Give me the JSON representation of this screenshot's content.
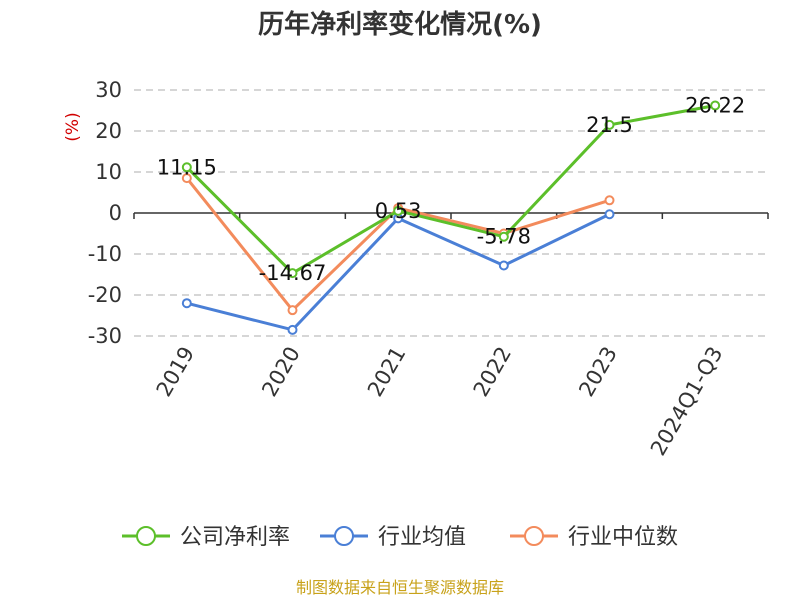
{
  "chart_data": {
    "type": "line",
    "title": "历年净利率变化情况(%)",
    "ylabel": "(%)",
    "categories": [
      "2019",
      "2020",
      "2021",
      "2022",
      "2023",
      "2024Q1-Q3"
    ],
    "ylim": [
      -30,
      30
    ],
    "yticks": [
      30,
      20,
      10,
      0,
      -10,
      -20,
      -30
    ],
    "grid": true,
    "legend_position": "bottom",
    "series": [
      {
        "name": "公司净利率",
        "color": "#5cbf2a",
        "values": [
          11.15,
          -14.67,
          0.53,
          -5.78,
          21.5,
          26.22
        ],
        "labels": [
          "11.15",
          "-14.67",
          "0.53",
          "-5.78",
          "21.5",
          "26.22"
        ]
      },
      {
        "name": "行业均值",
        "color": "#4a7fd6",
        "values": [
          -22,
          -28.5,
          -1.3,
          -12.8,
          -0.3,
          null
        ]
      },
      {
        "name": "行业中位数",
        "color": "#f38b5c",
        "values": [
          8.5,
          -23.7,
          1.2,
          -5.0,
          3.1,
          null
        ]
      }
    ]
  },
  "footer": {
    "source": "制图数据来自恒生聚源数据库"
  }
}
